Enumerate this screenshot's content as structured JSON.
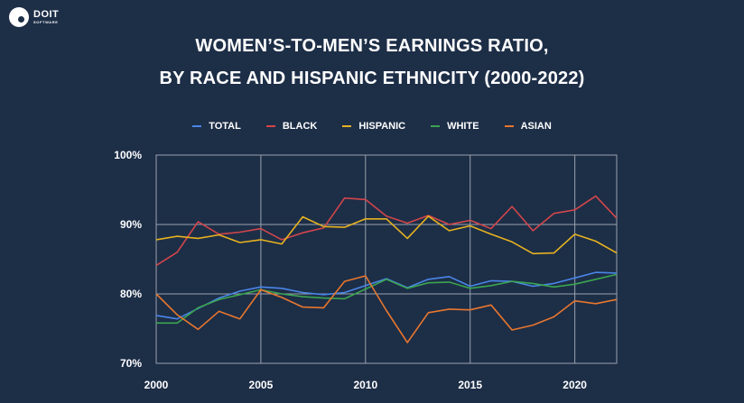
{
  "brand": {
    "name": "DOIT",
    "sub": "SOFTWARE"
  },
  "chart_data": {
    "type": "line",
    "title_line1": "WOMEN’S-TO-MEN’S EARNINGS RATIO,",
    "title_line2": "BY RACE AND HISPANIC ETHNICITY (2000-2022)",
    "x": [
      2000,
      2001,
      2002,
      2003,
      2004,
      2005,
      2006,
      2007,
      2008,
      2009,
      2010,
      2011,
      2012,
      2013,
      2014,
      2015,
      2016,
      2017,
      2018,
      2019,
      2020,
      2021,
      2022
    ],
    "xlim": [
      2000,
      2022
    ],
    "ylim": [
      70,
      100
    ],
    "xticks": [
      "2000",
      "2005",
      "2010",
      "2015",
      "2020"
    ],
    "yticks": [
      "100%",
      "90%",
      "80%",
      "70%"
    ],
    "grid": true,
    "legend_position": "top",
    "series": [
      {
        "name": "TOTAL",
        "color": "#4a86e8",
        "values": [
          76.9,
          76.4,
          77.9,
          79.4,
          80.4,
          81.0,
          80.8,
          80.2,
          79.9,
          80.2,
          81.2,
          82.2,
          80.9,
          82.1,
          82.5,
          81.1,
          81.9,
          81.8,
          81.1,
          81.5,
          82.3,
          83.1,
          83.0
        ]
      },
      {
        "name": "BLACK",
        "color": "#d2464a",
        "values": [
          84.1,
          86.0,
          90.4,
          88.6,
          88.9,
          89.4,
          87.8,
          88.8,
          89.5,
          93.8,
          93.6,
          91.2,
          90.2,
          91.3,
          90.0,
          90.6,
          89.4,
          92.6,
          89.1,
          91.6,
          92.1,
          94.1,
          90.9
        ]
      },
      {
        "name": "HISPANIC",
        "color": "#e6b21f",
        "values": [
          87.8,
          88.3,
          88.0,
          88.5,
          87.4,
          87.8,
          87.2,
          91.1,
          89.7,
          89.6,
          90.8,
          90.8,
          88.0,
          91.2,
          89.1,
          89.8,
          88.6,
          87.5,
          85.8,
          85.9,
          88.6,
          87.6,
          85.9
        ]
      },
      {
        "name": "WHITE",
        "color": "#3aa54f",
        "values": [
          75.8,
          75.8,
          78.0,
          79.2,
          79.9,
          80.6,
          80.0,
          79.6,
          79.4,
          79.3,
          80.7,
          82.1,
          80.8,
          81.6,
          81.7,
          80.8,
          81.2,
          81.8,
          81.5,
          81.0,
          81.4,
          82.1,
          82.8
        ]
      },
      {
        "name": "ASIAN",
        "color": "#e8772e",
        "values": [
          80.0,
          77.0,
          74.9,
          77.5,
          76.4,
          80.6,
          79.5,
          78.1,
          78.0,
          81.8,
          82.6,
          77.6,
          73.0,
          77.3,
          77.8,
          77.7,
          78.4,
          74.8,
          75.5,
          76.7,
          79.0,
          78.6,
          79.2
        ]
      }
    ]
  }
}
